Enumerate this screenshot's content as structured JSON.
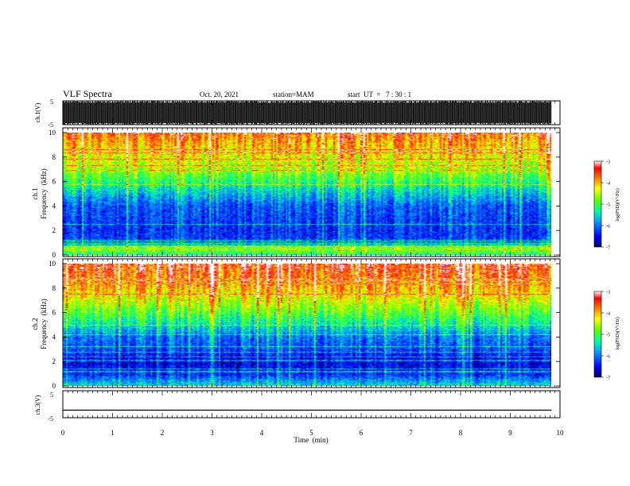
{
  "header": {
    "title": "VLF Spectra",
    "date": "Oct. 20, 2021",
    "station": "station=MAM",
    "start_ut": "start  UT  =   7 : 30 : 1"
  },
  "chart_data": [
    {
      "type": "line",
      "panel": "waveform-ch1",
      "ylabel": "ch.1(V)",
      "ylim": [
        -5,
        5
      ],
      "yticks": [
        "5",
        "-5"
      ],
      "xlim": [
        0,
        10
      ],
      "note_values": "dense high-amplitude impulsive noise spanning roughly -5 to 5 V",
      "series_color": "#000000"
    },
    {
      "type": "heatmap",
      "panel": "spectrogram-ch1",
      "ylabel_channel": "ch.1",
      "ylabel": "Frequency  (kHz)",
      "ylim": [
        0,
        10
      ],
      "yticks": [
        "0",
        "2",
        "4",
        "6",
        "8",
        "10"
      ],
      "xlim": [
        0,
        9.83
      ],
      "colorbar": {
        "label": "log(PSD)(V²/Hz)",
        "range": [
          -7,
          -3
        ],
        "ticks": [
          "-3",
          "-4",
          "-5",
          "-6",
          "-7"
        ],
        "colors": [
          "#00007f",
          "#0000ff",
          "#00bfff",
          "#00ff80",
          "#80ff00",
          "#ffff00",
          "#ff8000",
          "#ff0000",
          "#ffffff"
        ]
      },
      "bands_khz_logpsd": [
        [
          0,
          -5.2
        ],
        [
          0.5,
          -4.6
        ],
        [
          1,
          -6.2
        ],
        [
          2,
          -6.3
        ],
        [
          3,
          -6.2
        ],
        [
          4,
          -6.1
        ],
        [
          5,
          -5.6
        ],
        [
          6,
          -5.1
        ],
        [
          7,
          -4.6
        ],
        [
          8,
          -4.3
        ],
        [
          9,
          -4.0
        ],
        [
          10,
          -3.6
        ]
      ]
    },
    {
      "type": "heatmap",
      "panel": "spectrogram-ch2",
      "ylabel_channel": "ch.2",
      "ylabel": "Frequency  (kHz)",
      "ylim": [
        0,
        10
      ],
      "yticks": [
        "0",
        "2",
        "4",
        "6",
        "8",
        "10"
      ],
      "xlim": [
        0,
        9.83
      ],
      "colorbar": {
        "label": "log(PSD)(V²/Hz)",
        "range": [
          -7,
          -3
        ],
        "ticks": [
          "-3",
          "-4",
          "-5",
          "-6",
          "-7"
        ]
      },
      "bands_khz_logpsd": [
        [
          0,
          -5.5
        ],
        [
          1,
          -6.4
        ],
        [
          2,
          -6.6
        ],
        [
          3,
          -6.2
        ],
        [
          4,
          -6.0
        ],
        [
          5,
          -5.4
        ],
        [
          6,
          -4.9
        ],
        [
          7,
          -4.4
        ],
        [
          8,
          -4.0
        ],
        [
          9,
          -3.7
        ],
        [
          10,
          -3.4
        ]
      ]
    },
    {
      "type": "line",
      "panel": "waveform-ch3",
      "ylabel": "ch.3(V)",
      "ylim": [
        -5,
        5
      ],
      "yticks": [
        "5",
        "-5"
      ],
      "xlim": [
        0,
        10
      ],
      "x": [
        0,
        9.83
      ],
      "y": [
        -2.2,
        -2.2
      ],
      "series_color": "#000000"
    }
  ],
  "x_axis": {
    "label": "Time  (min)",
    "ticks": [
      "0",
      "1",
      "2",
      "3",
      "4",
      "5",
      "6",
      "7",
      "8",
      "9",
      "10"
    ],
    "range": [
      0,
      10
    ]
  }
}
